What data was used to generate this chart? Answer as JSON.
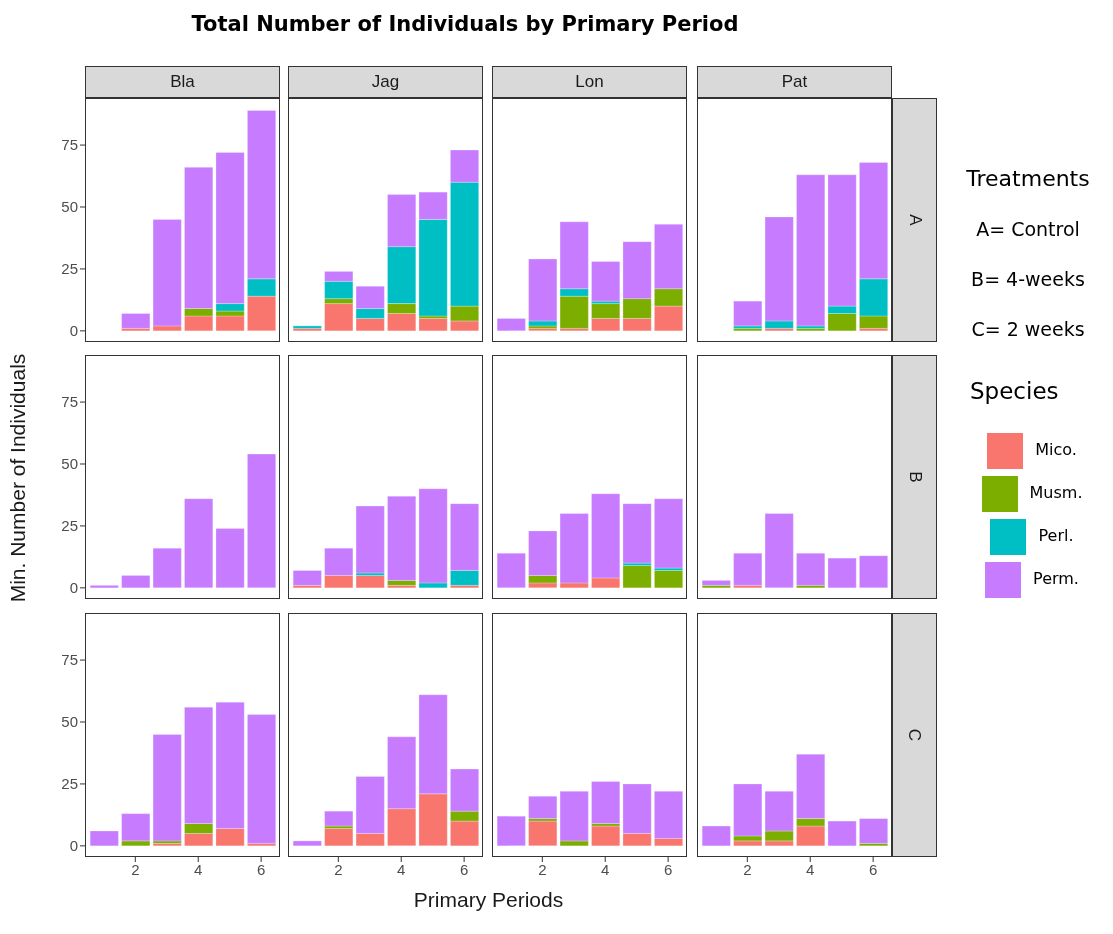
{
  "chart_data": [
    {
      "type": "bar",
      "title": "Bla",
      "annotations": [
        "Total Number of Individuals by Primary Period"
      ],
      "stacked": true,
      "x": [
        2,
        3,
        4,
        5,
        6
      ],
      "xlim": [
        0.4,
        6.6
      ],
      "xticks": [
        2,
        4,
        6
      ],
      "ylim": [
        -4.5,
        94
      ],
      "yticks": [
        0,
        25,
        50,
        75
      ],
      "tick_labels": "y",
      "series": [
        {
          "color": "#f8766d",
          "values": [
            1,
            2,
            6,
            6,
            14
          ]
        },
        {
          "color": "#7cae00",
          "values": [
            0,
            0,
            3,
            2,
            0
          ]
        },
        {
          "color": "#00bfc4",
          "values": [
            0,
            0,
            0,
            3,
            7
          ]
        },
        {
          "color": "#c77cff",
          "values": [
            6,
            43,
            57,
            61,
            68
          ]
        }
      ]
    },
    {
      "type": "bar",
      "title": "Jag",
      "stacked": true,
      "x": [
        1,
        2,
        3,
        4,
        5,
        6
      ],
      "xlim": [
        0.4,
        6.6
      ],
      "xticks": [
        2,
        4,
        6
      ],
      "ylim": [
        -4.5,
        94
      ],
      "yticks": [
        0,
        25,
        50,
        75
      ],
      "tick_labels": false,
      "series": [
        {
          "color": "#f8766d",
          "values": [
            1,
            11,
            5,
            7,
            5,
            4
          ]
        },
        {
          "color": "#7cae00",
          "values": [
            0,
            2,
            0,
            4,
            1,
            6
          ]
        },
        {
          "color": "#00bfc4",
          "values": [
            1,
            7,
            4,
            23,
            39,
            50
          ]
        },
        {
          "color": "#c77cff",
          "values": [
            0,
            4,
            9,
            21,
            11,
            13
          ]
        }
      ]
    },
    {
      "type": "bar",
      "title": "Lon",
      "stacked": true,
      "x": [
        1,
        2,
        3,
        4,
        5,
        6
      ],
      "xlim": [
        0.4,
        6.6
      ],
      "xticks": [
        2,
        4,
        6
      ],
      "ylim": [
        -4.5,
        94
      ],
      "yticks": [
        0,
        25,
        50,
        75
      ],
      "tick_labels": false,
      "series": [
        {
          "color": "#f8766d",
          "values": [
            0,
            1,
            1,
            5,
            5,
            10
          ]
        },
        {
          "color": "#7cae00",
          "values": [
            0,
            1,
            13,
            6,
            8,
            7
          ]
        },
        {
          "color": "#00bfc4",
          "values": [
            0,
            2,
            3,
            1,
            0,
            0
          ]
        },
        {
          "color": "#c77cff",
          "values": [
            5,
            25,
            27,
            16,
            23,
            26
          ]
        }
      ]
    },
    {
      "type": "bar",
      "title": "Pat",
      "annotations": [
        "A",
        "Treatments",
        "A= Control",
        "B= 4-weeks",
        "C= 2 weeks"
      ],
      "legend": "right",
      "legend_title": "Species",
      "stacked": true,
      "x": [
        2,
        3,
        4,
        5,
        6
      ],
      "xlim": [
        0.4,
        6.6
      ],
      "xticks": [
        2,
        4,
        6
      ],
      "ylim": [
        -4.5,
        94
      ],
      "yticks": [
        0,
        25,
        50,
        75
      ],
      "tick_labels": false,
      "series": [
        {
          "name": "Mico.",
          "color": "#f8766d",
          "values": [
            0,
            1,
            0,
            0,
            1
          ]
        },
        {
          "name": "Musm.",
          "color": "#7cae00",
          "values": [
            1,
            0,
            1,
            7,
            5
          ]
        },
        {
          "name": "Perl.",
          "color": "#00bfc4",
          "values": [
            1,
            3,
            1,
            3,
            15
          ]
        },
        {
          "name": "Perm.",
          "color": "#c77cff",
          "values": [
            10,
            42,
            61,
            53,
            47
          ]
        }
      ]
    },
    {
      "type": "bar",
      "ylabel": "Min. Number of Individuals",
      "stacked": true,
      "x": [
        1,
        2,
        3,
        4,
        5,
        6
      ],
      "xlim": [
        0.4,
        6.6
      ],
      "xticks": [
        2,
        4,
        6
      ],
      "ylim": [
        -4.5,
        94
      ],
      "yticks": [
        0,
        25,
        50,
        75
      ],
      "tick_labels": "y",
      "series": [
        {
          "color": "#f8766d",
          "values": [
            0,
            0,
            0,
            0,
            0,
            0
          ]
        },
        {
          "color": "#7cae00",
          "values": [
            0,
            0,
            0,
            0,
            0,
            0
          ]
        },
        {
          "color": "#00bfc4",
          "values": [
            0,
            0,
            0,
            0,
            0,
            0
          ]
        },
        {
          "color": "#c77cff",
          "values": [
            1,
            5,
            16,
            36,
            24,
            54
          ]
        }
      ]
    },
    {
      "type": "bar",
      "stacked": true,
      "x": [
        1,
        2,
        3,
        4,
        5,
        6
      ],
      "xlim": [
        0.4,
        6.6
      ],
      "xticks": [
        2,
        4,
        6
      ],
      "ylim": [
        -4.5,
        94
      ],
      "yticks": [
        0,
        25,
        50,
        75
      ],
      "tick_labels": false,
      "series": [
        {
          "color": "#f8766d",
          "values": [
            1,
            5,
            5,
            1,
            0,
            1
          ]
        },
        {
          "color": "#7cae00",
          "values": [
            0,
            0,
            0,
            2,
            0,
            0
          ]
        },
        {
          "color": "#00bfc4",
          "values": [
            0,
            0,
            1,
            0,
            2,
            6
          ]
        },
        {
          "color": "#c77cff",
          "values": [
            6,
            11,
            27,
            34,
            38,
            27
          ]
        }
      ]
    },
    {
      "type": "bar",
      "stacked": true,
      "x": [
        1,
        2,
        3,
        4,
        5,
        6
      ],
      "xlim": [
        0.4,
        6.6
      ],
      "xticks": [
        2,
        4,
        6
      ],
      "ylim": [
        -4.5,
        94
      ],
      "yticks": [
        0,
        25,
        50,
        75
      ],
      "tick_labels": false,
      "series": [
        {
          "color": "#f8766d",
          "values": [
            0,
            2,
            2,
            4,
            0,
            0
          ]
        },
        {
          "color": "#7cae00",
          "values": [
            0,
            3,
            0,
            0,
            9,
            7
          ]
        },
        {
          "color": "#00bfc4",
          "values": [
            0,
            0,
            0,
            0,
            1,
            1
          ]
        },
        {
          "color": "#c77cff",
          "values": [
            14,
            18,
            28,
            34,
            24,
            28
          ]
        }
      ]
    },
    {
      "type": "bar",
      "annotations": [
        "B"
      ],
      "stacked": true,
      "x": [
        1,
        2,
        3,
        4,
        5,
        6
      ],
      "xlim": [
        0.4,
        6.6
      ],
      "xticks": [
        2,
        4,
        6
      ],
      "ylim": [
        -4.5,
        94
      ],
      "yticks": [
        0,
        25,
        50,
        75
      ],
      "tick_labels": false,
      "series": [
        {
          "color": "#f8766d",
          "values": [
            0,
            1,
            0,
            0,
            0,
            0
          ]
        },
        {
          "color": "#7cae00",
          "values": [
            1,
            0,
            0,
            1,
            0,
            0
          ]
        },
        {
          "color": "#00bfc4",
          "values": [
            0,
            0,
            0,
            0,
            0,
            0
          ]
        },
        {
          "color": "#c77cff",
          "values": [
            2,
            13,
            30,
            13,
            12,
            13
          ]
        }
      ]
    },
    {
      "type": "bar",
      "stacked": true,
      "x": [
        1,
        2,
        3,
        4,
        5,
        6
      ],
      "xlim": [
        0.4,
        6.6
      ],
      "xticks": [
        2,
        4,
        6
      ],
      "ylim": [
        -4.5,
        94
      ],
      "yticks": [
        0,
        25,
        50,
        75
      ],
      "series": [
        {
          "color": "#f8766d",
          "values": [
            0,
            0,
            1,
            5,
            7,
            1
          ]
        },
        {
          "color": "#7cae00",
          "values": [
            0,
            2,
            1,
            4,
            0,
            0
          ]
        },
        {
          "color": "#00bfc4",
          "values": [
            0,
            0,
            0,
            0,
            0,
            0
          ]
        },
        {
          "color": "#c77cff",
          "values": [
            6,
            11,
            43,
            47,
            51,
            52
          ]
        }
      ]
    },
    {
      "type": "bar",
      "xlabel": "Primary Periods",
      "stacked": true,
      "x": [
        1,
        2,
        3,
        4,
        5,
        6
      ],
      "xlim": [
        0.4,
        6.6
      ],
      "xticks": [
        2,
        4,
        6
      ],
      "ylim": [
        -4.5,
        94
      ],
      "yticks": [
        0,
        25,
        50,
        75
      ],
      "tick_labels": "x",
      "series": [
        {
          "color": "#f8766d",
          "values": [
            0,
            7,
            5,
            15,
            21,
            10
          ]
        },
        {
          "color": "#7cae00",
          "values": [
            0,
            1,
            0,
            0,
            0,
            4
          ]
        },
        {
          "color": "#00bfc4",
          "values": [
            0,
            0,
            0,
            0,
            0,
            0
          ]
        },
        {
          "color": "#c77cff",
          "values": [
            2,
            6,
            23,
            29,
            40,
            17
          ]
        }
      ]
    },
    {
      "type": "bar",
      "stacked": true,
      "x": [
        1,
        2,
        3,
        4,
        5,
        6
      ],
      "xlim": [
        0.4,
        6.6
      ],
      "xticks": [
        2,
        4,
        6
      ],
      "ylim": [
        -4.5,
        94
      ],
      "yticks": [
        0,
        25,
        50,
        75
      ],
      "tick_labels": "x",
      "series": [
        {
          "color": "#f8766d",
          "values": [
            0,
            10,
            0,
            8,
            5,
            3
          ]
        },
        {
          "color": "#7cae00",
          "values": [
            0,
            1,
            2,
            1,
            0,
            0
          ]
        },
        {
          "color": "#00bfc4",
          "values": [
            0,
            0,
            0,
            0,
            0,
            0
          ]
        },
        {
          "color": "#c77cff",
          "values": [
            12,
            9,
            20,
            17,
            20,
            19
          ]
        }
      ]
    },
    {
      "type": "bar",
      "annotations": [
        "C"
      ],
      "stacked": true,
      "x": [
        1,
        2,
        3,
        4,
        5,
        6
      ],
      "xlim": [
        0.4,
        6.6
      ],
      "xticks": [
        2,
        4,
        6
      ],
      "ylim": [
        -4.5,
        94
      ],
      "yticks": [
        0,
        25,
        50,
        75
      ],
      "tick_labels": "x",
      "series": [
        {
          "color": "#f8766d",
          "values": [
            0,
            2,
            2,
            8,
            0,
            0
          ]
        },
        {
          "color": "#7cae00",
          "values": [
            0,
            2,
            4,
            3,
            0,
            1
          ]
        },
        {
          "color": "#00bfc4",
          "values": [
            0,
            0,
            0,
            0,
            0,
            0
          ]
        },
        {
          "color": "#c77cff",
          "values": [
            8,
            21,
            16,
            26,
            10,
            10
          ]
        }
      ]
    }
  ]
}
